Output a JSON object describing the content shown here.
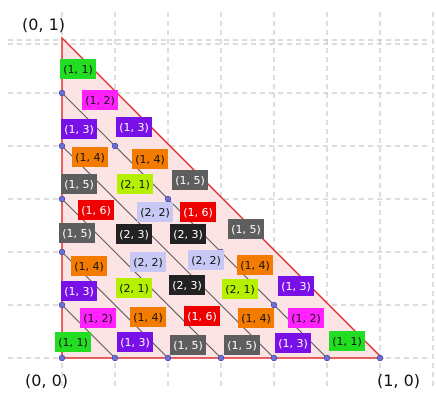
{
  "corners": {
    "top": "(0, 1)",
    "origin": "(0, 0)",
    "right": "(1, 0)"
  },
  "colors": {
    "grid": "#bbbbbb",
    "triangle_fill": "#fde4e4",
    "triangle_edge": "#e03030",
    "diagonal": "#555555",
    "vertex": "#6a70d8",
    "legend": {
      "(1,1)": "#22dd22",
      "(1,2)": "#ff22ff",
      "(1,3)": "#7a10e8",
      "(1,4)": "#f37c00",
      "(1,5)": "#5e5e5e",
      "(1,6)": "#ee0000",
      "(2,1)": "#b4f000",
      "(2,2)": "#c8c8f5",
      "(2,3)": "#222222"
    }
  },
  "tiles": [
    {
      "label": "(1, 1)",
      "key": "(1,1)"
    },
    {
      "label": "(1, 2)",
      "key": "(1,2)"
    },
    {
      "label": "(1, 3)",
      "key": "(1,3)"
    },
    {
      "label": "(1, 3)",
      "key": "(1,3)"
    },
    {
      "label": "(1, 4)",
      "key": "(1,4)"
    },
    {
      "label": "(1, 4)",
      "key": "(1,4)"
    },
    {
      "label": "(1, 5)",
      "key": "(1,5)"
    },
    {
      "label": "(2, 1)",
      "key": "(2,1)"
    },
    {
      "label": "(1, 5)",
      "key": "(1,5)"
    },
    {
      "label": "(1, 6)",
      "key": "(1,6)"
    },
    {
      "label": "(2, 2)",
      "key": "(2,2)"
    },
    {
      "label": "(1, 6)",
      "key": "(1,6)"
    },
    {
      "label": "(1, 5)",
      "key": "(1,5)"
    },
    {
      "label": "(2, 3)",
      "key": "(2,3)"
    },
    {
      "label": "(2, 3)",
      "key": "(2,3)"
    },
    {
      "label": "(1, 5)",
      "key": "(1,5)"
    },
    {
      "label": "(1, 4)",
      "key": "(1,4)"
    },
    {
      "label": "(2, 2)",
      "key": "(2,2)"
    },
    {
      "label": "(2, 2)",
      "key": "(2,2)"
    },
    {
      "label": "(1, 4)",
      "key": "(1,4)"
    },
    {
      "label": "(1, 3)",
      "key": "(1,3)"
    },
    {
      "label": "(2, 1)",
      "key": "(2,1)"
    },
    {
      "label": "(2, 3)",
      "key": "(2,3)"
    },
    {
      "label": "(2, 1)",
      "key": "(2,1)"
    },
    {
      "label": "(1, 3)",
      "key": "(1,3)"
    },
    {
      "label": "(1, 2)",
      "key": "(1,2)"
    },
    {
      "label": "(1, 4)",
      "key": "(1,4)"
    },
    {
      "label": "(1, 6)",
      "key": "(1,6)"
    },
    {
      "label": "(1, 4)",
      "key": "(1,4)"
    },
    {
      "label": "(1, 2)",
      "key": "(1,2)"
    },
    {
      "label": "(1, 1)",
      "key": "(1,1)"
    },
    {
      "label": "(1, 3)",
      "key": "(1,3)"
    },
    {
      "label": "(1, 5)",
      "key": "(1,5)"
    },
    {
      "label": "(1, 5)",
      "key": "(1,5)"
    },
    {
      "label": "(1, 3)",
      "key": "(1,3)"
    },
    {
      "label": "(1, 1)",
      "key": "(1,1)"
    }
  ]
}
